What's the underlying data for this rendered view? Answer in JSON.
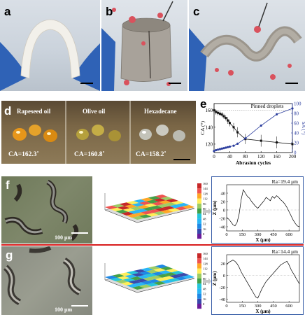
{
  "panels": {
    "a": {
      "label": "a"
    },
    "b": {
      "label": "b"
    },
    "c": {
      "label": "c"
    },
    "d": {
      "label": "d",
      "oils": [
        {
          "name": "Rapeseed oil",
          "ca": "CA=162.3˚"
        },
        {
          "name": "Olive oil",
          "ca": "CA=160.8˚"
        },
        {
          "name": "Hexadecane",
          "ca": "CA=158.2˚"
        }
      ]
    },
    "e": {
      "label": "e"
    },
    "f": {
      "label": "f",
      "scale": "100 μm"
    },
    "g": {
      "label": "g",
      "scale": "100 μm"
    }
  },
  "colors": {
    "red_separator": "#d81c1c",
    "blue_frame": "#3a5fa8",
    "ca_series": "#111111",
    "sa_series": "#2c3e9e"
  },
  "chart_data": [
    {
      "type": "line",
      "panel": "e",
      "annotation": "Pinned droplets",
      "xlabel": "Abrasion cycles",
      "ylabel": "CA (°)",
      "ylabel_right": "SA (°)",
      "xlim": [
        0,
        200
      ],
      "ylim": [
        110,
        168
      ],
      "ylim_right": [
        0,
        100
      ],
      "xticks": [
        0,
        40,
        80,
        120,
        160,
        200
      ],
      "yticks": [
        120,
        140,
        160
      ],
      "yticks_right": [
        0,
        20,
        40,
        60,
        80,
        100
      ],
      "series": [
        {
          "axis": "left",
          "x": [
            0,
            5,
            10,
            15,
            20,
            25,
            30,
            35,
            40,
            50,
            60,
            80,
            120,
            160,
            200
          ],
          "y": [
            160,
            158,
            157,
            156,
            155,
            153,
            151,
            148,
            145,
            140,
            134,
            126,
            124,
            122,
            120
          ],
          "err": [
            3,
            3,
            3,
            3,
            3,
            3,
            3,
            4,
            4,
            5,
            6,
            6,
            7,
            7,
            6
          ]
        },
        {
          "axis": "right",
          "x": [
            0,
            5,
            10,
            15,
            20,
            25,
            30,
            35,
            40,
            50,
            60,
            80,
            120,
            160,
            200
          ],
          "y": [
            3,
            5,
            6,
            7,
            8,
            9,
            10,
            11,
            12,
            14,
            18,
            29,
            55,
            78,
            90
          ]
        }
      ]
    },
    {
      "type": "line",
      "panel": "f",
      "title": "Ra=19.4 μm",
      "xlabel": "X (μm)",
      "ylabel": "Z (μm)",
      "xlim": [
        0,
        700
      ],
      "ylim": [
        -50,
        60
      ],
      "xticks": [
        0,
        150,
        300,
        450,
        600
      ],
      "yticks": [
        -40,
        -20,
        0,
        20,
        40
      ],
      "colorbar": [
        0,
        16,
        32,
        48,
        64,
        80,
        96,
        112,
        128,
        144,
        160
      ],
      "series": [
        {
          "x": [
            0,
            20,
            40,
            60,
            80,
            100,
            120,
            140,
            160,
            180,
            200,
            220,
            240,
            260,
            280,
            300,
            320,
            340,
            360,
            380,
            400,
            420,
            440,
            460,
            480,
            500,
            520,
            540,
            560,
            580,
            600,
            620,
            640,
            660,
            680,
            700
          ],
          "y": [
            -18,
            -22,
            -28,
            -35,
            -38,
            -30,
            -10,
            25,
            48,
            40,
            32,
            28,
            20,
            14,
            8,
            4,
            10,
            16,
            22,
            30,
            26,
            22,
            32,
            28,
            34,
            30,
            24,
            20,
            14,
            6,
            -4,
            -14,
            -24,
            -32,
            -38,
            -40
          ]
        }
      ]
    },
    {
      "type": "line",
      "panel": "g",
      "title": "Ra=14.4 μm",
      "xlabel": "X (μm)",
      "ylabel": "Z (μm)",
      "xlim": [
        0,
        700
      ],
      "ylim": [
        -45,
        35
      ],
      "xticks": [
        0,
        150,
        300,
        450,
        600
      ],
      "yticks": [
        -40,
        -20,
        0,
        20
      ],
      "colorbar": [
        0,
        16,
        32,
        48,
        64,
        80,
        96,
        112,
        128,
        144,
        160
      ],
      "series": [
        {
          "x": [
            0,
            20,
            40,
            60,
            80,
            100,
            120,
            140,
            160,
            180,
            200,
            220,
            240,
            260,
            280,
            300,
            320,
            340,
            360,
            380,
            400,
            420,
            440,
            460,
            480,
            500,
            520,
            540,
            560,
            580,
            600,
            620,
            640,
            660,
            680,
            700
          ],
          "y": [
            18,
            22,
            24,
            26,
            24,
            20,
            14,
            6,
            0,
            -6,
            -12,
            -18,
            -24,
            -30,
            -36,
            -38,
            -30,
            -22,
            -16,
            -10,
            -6,
            -2,
            2,
            6,
            10,
            14,
            18,
            20,
            22,
            24,
            18,
            10,
            4,
            -2,
            -8,
            -14
          ]
        }
      ]
    }
  ]
}
